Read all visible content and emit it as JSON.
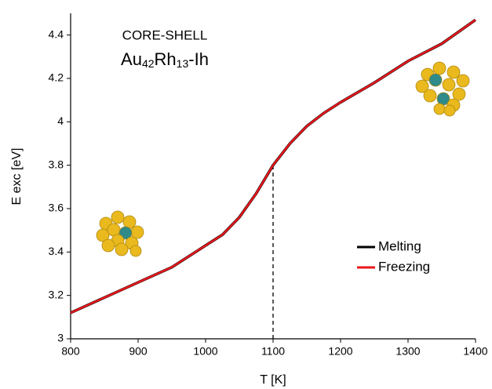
{
  "chart_data": {
    "type": "line",
    "annotations": [
      "CORE-SHELL",
      "Au42Rh13-Ih"
    ],
    "x_label": "T [K]",
    "y_label": "E exc [eV]",
    "x": [
      800,
      850,
      900,
      950,
      1000,
      1025,
      1050,
      1075,
      1100,
      1125,
      1150,
      1175,
      1200,
      1250,
      1300,
      1350,
      1400
    ],
    "series": [
      {
        "name": "Melting",
        "color": "#000000",
        "values": [
          3.12,
          3.19,
          3.26,
          3.33,
          3.43,
          3.48,
          3.56,
          3.67,
          3.8,
          3.9,
          3.98,
          4.04,
          4.09,
          4.18,
          4.28,
          4.36,
          4.47
        ]
      },
      {
        "name": "Freezing",
        "color": "#e8161b",
        "values": [
          3.12,
          3.19,
          3.26,
          3.33,
          3.43,
          3.48,
          3.56,
          3.67,
          3.8,
          3.9,
          3.98,
          4.04,
          4.09,
          4.18,
          4.28,
          4.36,
          4.47
        ]
      }
    ],
    "xlim": [
      800,
      1400
    ],
    "xticks": [
      800,
      900,
      1000,
      1100,
      1200,
      1300,
      1400
    ],
    "ylim": [
      3,
      4.5
    ],
    "yticks": [
      3,
      3.2,
      3.4,
      3.6,
      3.8,
      4,
      4.2,
      4.4
    ],
    "marker_line": {
      "x": 1100,
      "y": 3.8
    },
    "legend": "lower right"
  }
}
